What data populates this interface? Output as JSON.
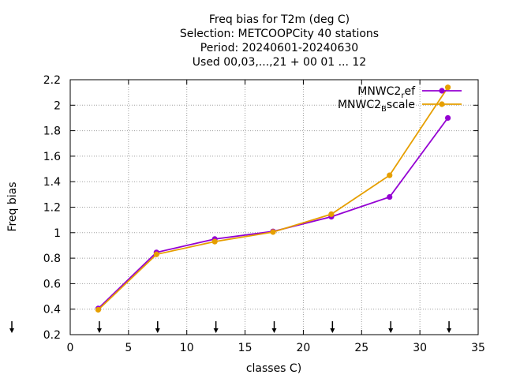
{
  "chart_data": {
    "type": "line",
    "title_lines": [
      "Freq bias  for T2m (deg C)",
      "Selection: METCOOPCity      40 stations",
      "Period: 20240601-20240630",
      "Used 00,03,...,21 + 00 01 ... 12"
    ],
    "xlabel": "classes C)",
    "ylabel": "Freq bias",
    "xlim": [
      0,
      35
    ],
    "ylim": [
      0.2,
      2.2
    ],
    "xticks": [
      0,
      5,
      10,
      15,
      20,
      25,
      30,
      35
    ],
    "yticks": [
      0.2,
      0.4,
      0.6,
      0.8,
      1,
      1.2,
      1.4,
      1.6,
      1.8,
      2,
      2.2
    ],
    "xtick_labels": [
      "0",
      "5",
      "10",
      "15",
      "20",
      "25",
      "30",
      "35"
    ],
    "ytick_labels": [
      "0.2",
      "0.4",
      "0.6",
      "0.8",
      "1",
      "1.2",
      "1.4",
      "1.6",
      "1.8",
      "2",
      "2.2"
    ],
    "grid": true,
    "legend_position": "top-right",
    "marker_x": [
      0,
      2.5,
      7.5,
      12.5,
      17.5,
      22.5,
      27.5,
      32.5
    ],
    "series": [
      {
        "name_main": "MNWC2",
        "name_sub": "r",
        "name_tail": "ef",
        "color": "#9400d3",
        "x": [
          2.4,
          7.4,
          12.4,
          17.4,
          22.4,
          27.4,
          32.4
        ],
        "y": [
          0.405,
          0.845,
          0.95,
          1.01,
          1.125,
          1.28,
          1.9
        ]
      },
      {
        "name_main": "MNWC2",
        "name_sub": "B",
        "name_tail": "scale",
        "color": "#e69f00",
        "x": [
          2.4,
          7.4,
          12.4,
          17.4,
          22.4,
          27.4,
          32.4
        ],
        "y": [
          0.395,
          0.83,
          0.93,
          1.005,
          1.145,
          1.45,
          2.14
        ]
      }
    ]
  }
}
